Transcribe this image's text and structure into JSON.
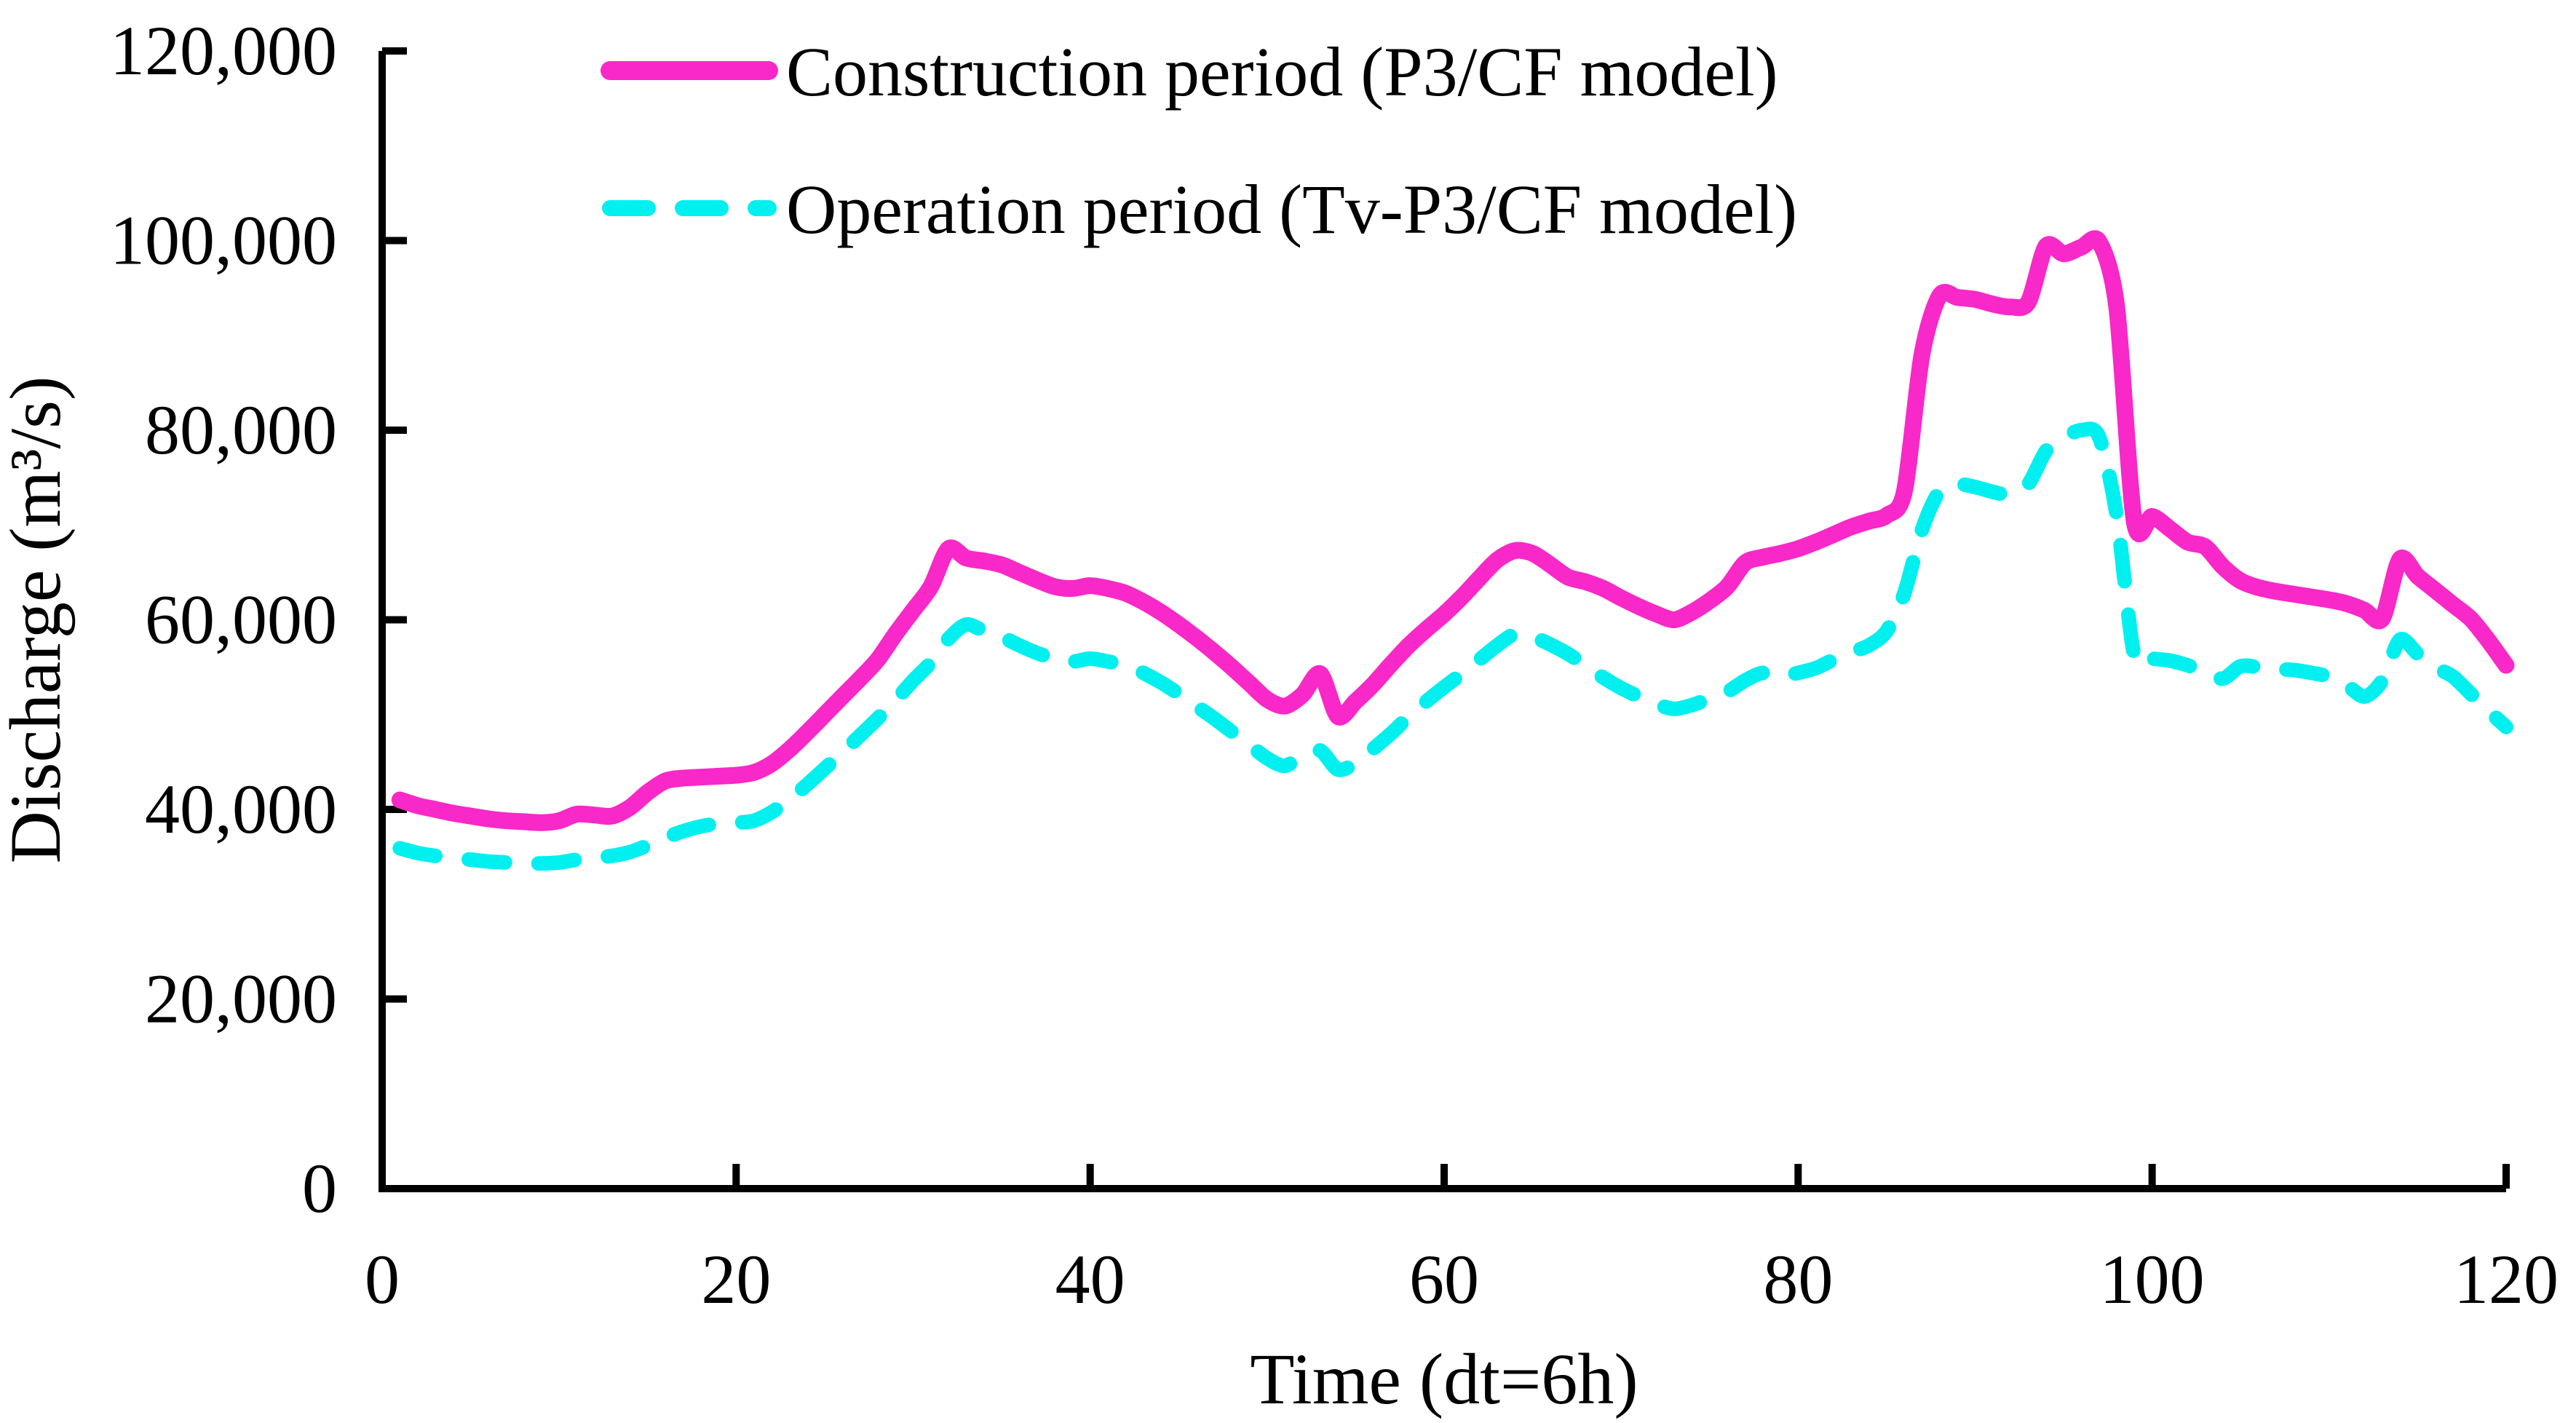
{
  "chart_data": {
    "type": "line",
    "title": "",
    "xlabel": "Time (dt=6h)",
    "ylabel": "Discharge (m³/s)",
    "xlim": [
      0,
      120
    ],
    "ylim": [
      0,
      120000
    ],
    "grid": false,
    "legend_position": "top-left-inside",
    "x_ticks": [
      0,
      20,
      40,
      60,
      80,
      100,
      120
    ],
    "x_tick_labels": [
      "0",
      "20",
      "40",
      "60",
      "80",
      "100",
      "120"
    ],
    "y_ticks": [
      0,
      20000,
      40000,
      60000,
      80000,
      100000,
      120000
    ],
    "y_tick_labels": [
      "0",
      "20,000",
      "40,000",
      "60,000",
      "80,000",
      "100,000",
      "120,000"
    ],
    "x": [
      1,
      2,
      3,
      4,
      5,
      6,
      7,
      8,
      9,
      10,
      11,
      12,
      13,
      14,
      15,
      16,
      17,
      18,
      19,
      20,
      21,
      22,
      23,
      24,
      25,
      26,
      27,
      28,
      29,
      30,
      31,
      32,
      33,
      34,
      35,
      36,
      37,
      38,
      39,
      40,
      41,
      42,
      43,
      44,
      45,
      46,
      47,
      48,
      49,
      50,
      51,
      52,
      53,
      54,
      55,
      56,
      57,
      58,
      59,
      60,
      61,
      62,
      63,
      64,
      65,
      66,
      67,
      68,
      69,
      70,
      71,
      72,
      73,
      74,
      75,
      76,
      77,
      78,
      79,
      80,
      81,
      82,
      83,
      84,
      85,
      86,
      87,
      88,
      89,
      90,
      91,
      92,
      93,
      94,
      95,
      96,
      97,
      98,
      99,
      100,
      101,
      102,
      103,
      104,
      105,
      106,
      107,
      108,
      109,
      110,
      111,
      112,
      113,
      114,
      115,
      116,
      117,
      118,
      119,
      120
    ],
    "series": [
      {
        "name": "Construction period  (P3/CF model)",
        "color": "#f928c8",
        "style": "solid",
        "values": [
          41000,
          40400,
          40000,
          39600,
          39300,
          39000,
          38800,
          38700,
          38600,
          38800,
          39500,
          39400,
          39300,
          40200,
          41800,
          43000,
          43300,
          43400,
          43500,
          43600,
          43900,
          44800,
          46300,
          48100,
          50000,
          51900,
          53800,
          55800,
          58500,
          61000,
          63500,
          67500,
          66500,
          66200,
          65800,
          65000,
          64200,
          63500,
          63300,
          63600,
          63300,
          62800,
          61900,
          60800,
          59500,
          58100,
          56600,
          55000,
          53300,
          51600,
          50900,
          52100,
          54300,
          49800,
          51400,
          53200,
          55300,
          57300,
          59000,
          60600,
          62400,
          64400,
          66300,
          67300,
          67000,
          65800,
          64500,
          64000,
          63300,
          62300,
          61400,
          60600,
          60000,
          60800,
          62000,
          63500,
          66000,
          66600,
          67000,
          67500,
          68200,
          69000,
          69800,
          70400,
          71000,
          73500,
          88000,
          94200,
          94000,
          93800,
          93300,
          93000,
          93500,
          99400,
          98600,
          99300,
          99900,
          93000,
          70300,
          70900,
          69600,
          68200,
          67700,
          65600,
          64100,
          63400,
          63000,
          62700,
          62400,
          62100,
          61700,
          61000,
          60100,
          66400,
          64600,
          63100,
          61600,
          60100,
          57800,
          55200
        ]
      },
      {
        "name": "Operation period (Tv-P3/CF model)",
        "color": "#00f0f0",
        "style": "dashed",
        "values": [
          35900,
          35400,
          35100,
          34900,
          34700,
          34500,
          34400,
          34300,
          34300,
          34400,
          34700,
          34900,
          35100,
          35500,
          36200,
          37000,
          37700,
          38200,
          38500,
          38600,
          38800,
          39700,
          41000,
          42600,
          44300,
          46000,
          47800,
          49600,
          51500,
          53600,
          55500,
          58000,
          59500,
          58800,
          58200,
          57300,
          56500,
          55900,
          55600,
          55900,
          55600,
          55200,
          54400,
          53400,
          52200,
          50900,
          49600,
          48200,
          46800,
          45400,
          44600,
          45700,
          46200,
          44200,
          44900,
          46400,
          48000,
          49800,
          51400,
          52900,
          54300,
          55800,
          57300,
          58500,
          58200,
          57400,
          56400,
          55200,
          53900,
          52800,
          51900,
          51100,
          50600,
          51000,
          51700,
          52400,
          53600,
          54400,
          54000,
          54400,
          54900,
          55800,
          56600,
          57300,
          58800,
          62800,
          69500,
          73600,
          74300,
          74000,
          73500,
          73200,
          74300,
          77800,
          79200,
          80000,
          79300,
          71000,
          56200,
          55900,
          55700,
          55200,
          54500,
          53800,
          55100,
          55000,
          54800,
          54700,
          54400,
          54000,
          53100,
          51900,
          53600,
          57900,
          56400,
          55000,
          54000,
          52200,
          50400,
          48700
        ]
      }
    ],
    "axis_color": "#000000",
    "background_color": "#ffffff"
  }
}
